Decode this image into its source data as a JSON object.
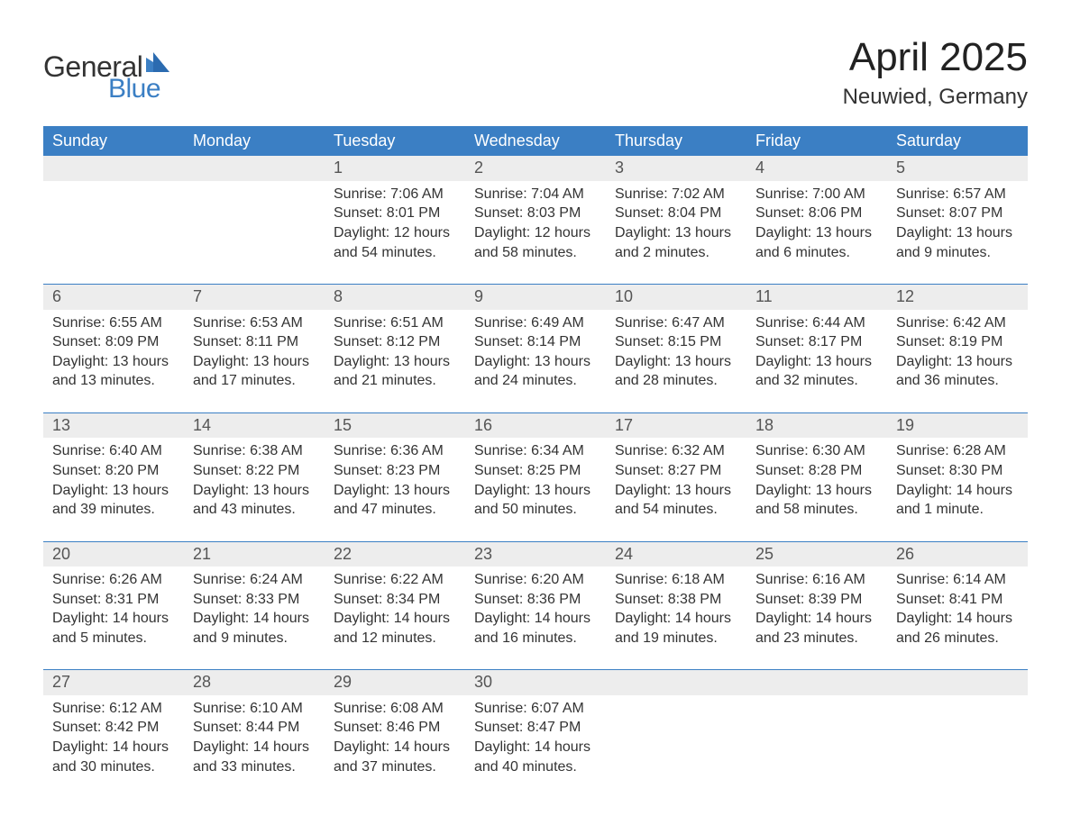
{
  "logo": {
    "word1": "General",
    "word2": "Blue",
    "accent_color": "#3b7fc4"
  },
  "header": {
    "month_title": "April 2025",
    "location": "Neuwied, Germany"
  },
  "colors": {
    "header_bg": "#3b7fc4",
    "header_text": "#ffffff",
    "daynum_bg": "#ededed",
    "text": "#333333",
    "sep": "#3b7fc4"
  },
  "fonts": {
    "title_size_pt": 33,
    "location_size_pt": 18,
    "dayhead_size_pt": 14,
    "body_size_pt": 12
  },
  "day_headers": [
    "Sunday",
    "Monday",
    "Tuesday",
    "Wednesday",
    "Thursday",
    "Friday",
    "Saturday"
  ],
  "weeks": [
    [
      null,
      null,
      {
        "n": "1",
        "sunrise": "7:06 AM",
        "sunset": "8:01 PM",
        "daylight": "12 hours and 54 minutes."
      },
      {
        "n": "2",
        "sunrise": "7:04 AM",
        "sunset": "8:03 PM",
        "daylight": "12 hours and 58 minutes."
      },
      {
        "n": "3",
        "sunrise": "7:02 AM",
        "sunset": "8:04 PM",
        "daylight": "13 hours and 2 minutes."
      },
      {
        "n": "4",
        "sunrise": "7:00 AM",
        "sunset": "8:06 PM",
        "daylight": "13 hours and 6 minutes."
      },
      {
        "n": "5",
        "sunrise": "6:57 AM",
        "sunset": "8:07 PM",
        "daylight": "13 hours and 9 minutes."
      }
    ],
    [
      {
        "n": "6",
        "sunrise": "6:55 AM",
        "sunset": "8:09 PM",
        "daylight": "13 hours and 13 minutes."
      },
      {
        "n": "7",
        "sunrise": "6:53 AM",
        "sunset": "8:11 PM",
        "daylight": "13 hours and 17 minutes."
      },
      {
        "n": "8",
        "sunrise": "6:51 AM",
        "sunset": "8:12 PM",
        "daylight": "13 hours and 21 minutes."
      },
      {
        "n": "9",
        "sunrise": "6:49 AM",
        "sunset": "8:14 PM",
        "daylight": "13 hours and 24 minutes."
      },
      {
        "n": "10",
        "sunrise": "6:47 AM",
        "sunset": "8:15 PM",
        "daylight": "13 hours and 28 minutes."
      },
      {
        "n": "11",
        "sunrise": "6:44 AM",
        "sunset": "8:17 PM",
        "daylight": "13 hours and 32 minutes."
      },
      {
        "n": "12",
        "sunrise": "6:42 AM",
        "sunset": "8:19 PM",
        "daylight": "13 hours and 36 minutes."
      }
    ],
    [
      {
        "n": "13",
        "sunrise": "6:40 AM",
        "sunset": "8:20 PM",
        "daylight": "13 hours and 39 minutes."
      },
      {
        "n": "14",
        "sunrise": "6:38 AM",
        "sunset": "8:22 PM",
        "daylight": "13 hours and 43 minutes."
      },
      {
        "n": "15",
        "sunrise": "6:36 AM",
        "sunset": "8:23 PM",
        "daylight": "13 hours and 47 minutes."
      },
      {
        "n": "16",
        "sunrise": "6:34 AM",
        "sunset": "8:25 PM",
        "daylight": "13 hours and 50 minutes."
      },
      {
        "n": "17",
        "sunrise": "6:32 AM",
        "sunset": "8:27 PM",
        "daylight": "13 hours and 54 minutes."
      },
      {
        "n": "18",
        "sunrise": "6:30 AM",
        "sunset": "8:28 PM",
        "daylight": "13 hours and 58 minutes."
      },
      {
        "n": "19",
        "sunrise": "6:28 AM",
        "sunset": "8:30 PM",
        "daylight": "14 hours and 1 minute."
      }
    ],
    [
      {
        "n": "20",
        "sunrise": "6:26 AM",
        "sunset": "8:31 PM",
        "daylight": "14 hours and 5 minutes."
      },
      {
        "n": "21",
        "sunrise": "6:24 AM",
        "sunset": "8:33 PM",
        "daylight": "14 hours and 9 minutes."
      },
      {
        "n": "22",
        "sunrise": "6:22 AM",
        "sunset": "8:34 PM",
        "daylight": "14 hours and 12 minutes."
      },
      {
        "n": "23",
        "sunrise": "6:20 AM",
        "sunset": "8:36 PM",
        "daylight": "14 hours and 16 minutes."
      },
      {
        "n": "24",
        "sunrise": "6:18 AM",
        "sunset": "8:38 PM",
        "daylight": "14 hours and 19 minutes."
      },
      {
        "n": "25",
        "sunrise": "6:16 AM",
        "sunset": "8:39 PM",
        "daylight": "14 hours and 23 minutes."
      },
      {
        "n": "26",
        "sunrise": "6:14 AM",
        "sunset": "8:41 PM",
        "daylight": "14 hours and 26 minutes."
      }
    ],
    [
      {
        "n": "27",
        "sunrise": "6:12 AM",
        "sunset": "8:42 PM",
        "daylight": "14 hours and 30 minutes."
      },
      {
        "n": "28",
        "sunrise": "6:10 AM",
        "sunset": "8:44 PM",
        "daylight": "14 hours and 33 minutes."
      },
      {
        "n": "29",
        "sunrise": "6:08 AM",
        "sunset": "8:46 PM",
        "daylight": "14 hours and 37 minutes."
      },
      {
        "n": "30",
        "sunrise": "6:07 AM",
        "sunset": "8:47 PM",
        "daylight": "14 hours and 40 minutes."
      },
      null,
      null,
      null
    ]
  ],
  "labels": {
    "sunrise": "Sunrise:",
    "sunset": "Sunset:",
    "daylight": "Daylight:"
  }
}
